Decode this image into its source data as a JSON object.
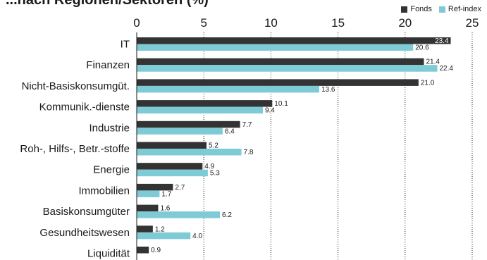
{
  "chart_data": {
    "type": "bar",
    "orientation": "horizontal",
    "title": "...nach Regionen/Sektoren (%)",
    "categories": [
      "IT",
      "Finanzen",
      "Nicht-Basiskonsumgüt.",
      "Kommunik.-dienste",
      "Industrie",
      "Roh-, Hilfs-, Betr.-stoffe",
      "Energie",
      "Immobilien",
      "Basiskonsumgüter",
      "Gesundheitswesen",
      "Liquidität"
    ],
    "series": [
      {
        "name": "Fonds",
        "color": "#333333",
        "values": [
          23.4,
          21.4,
          21.0,
          10.1,
          7.7,
          5.2,
          4.9,
          2.7,
          1.6,
          1.2,
          0.9
        ]
      },
      {
        "name": "Ref-index",
        "color": "#7ecbd6",
        "values": [
          20.6,
          22.4,
          13.6,
          9.4,
          6.4,
          7.8,
          5.3,
          1.7,
          6.2,
          4.0,
          null
        ]
      }
    ],
    "value_labels": {
      "Fonds": [
        "23.4",
        "21.4",
        "21.0",
        "10.1",
        "7.7",
        "5.2",
        "4.9",
        "2.7",
        "1.6",
        "1.2",
        "0.9"
      ],
      "Ref-index": [
        "20.6",
        "22.4",
        "13.6",
        "9.4",
        "6.4",
        "7.8",
        "5.3",
        "1.7",
        "6.2",
        "4.0",
        ""
      ]
    },
    "xlim": [
      0,
      25
    ],
    "ticks": [
      "0",
      "5",
      "10",
      "15",
      "20",
      "25"
    ],
    "tick_values": [
      0,
      5,
      10,
      15,
      20,
      25
    ],
    "grid": "vertical dotted",
    "legend_position": "top-right"
  }
}
